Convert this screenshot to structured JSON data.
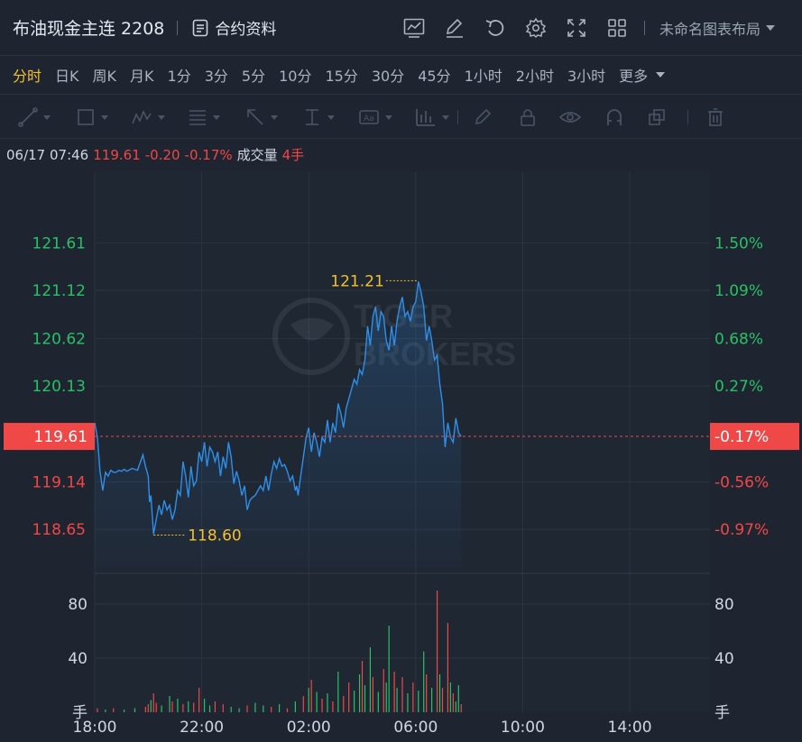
{
  "header": {
    "title": "布油现金主连 2208",
    "contract_label": "合约资料",
    "layout_label": "未命名图表布局",
    "toolbar_icons": [
      "chart-type-icon",
      "edit-icon",
      "refresh-icon",
      "settings-icon",
      "fullscreen-icon",
      "grid-layout-icon"
    ]
  },
  "periods": {
    "items": [
      "分时",
      "日K",
      "周K",
      "月K",
      "1分",
      "3分",
      "5分",
      "10分",
      "15分",
      "30分",
      "45分",
      "1小时",
      "2小时",
      "3小时"
    ],
    "more_label": "更多",
    "active": "分时"
  },
  "drawing_tools": [
    "line-tool-icon",
    "rectangle-tool-icon",
    "wave-tool-icon",
    "fibonacci-tool-icon",
    "arrow-tool-icon",
    "measure-tool-icon",
    "text-tool-icon",
    "indicator-tool-icon",
    "brush-icon",
    "lock-icon",
    "eye-icon",
    "magnet-icon",
    "copy-icon",
    "trash-icon"
  ],
  "quote": {
    "time": "06/17 07:46",
    "price": "119.61",
    "change": "-0.20",
    "change_pct": "-0.17%",
    "volume_label": "成交量",
    "volume": "4手"
  },
  "watermark": {
    "line1": "TIGER",
    "line2": "BROKERS"
  },
  "colors": {
    "up": "#29c165",
    "down": "#f04747",
    "line": "#2f8fe8",
    "accent": "#f4c02f",
    "background": "#1e2531"
  },
  "chart_data": {
    "type": "line",
    "price_axis_left": [
      "121.61",
      "121.12",
      "120.62",
      "120.13",
      "119.61",
      "119.14",
      "118.65"
    ],
    "price_axis_right": [
      "1.50%",
      "1.09%",
      "0.68%",
      "0.27%",
      "-0.17%",
      "-0.56%",
      "-0.97%"
    ],
    "current_price": "119.61",
    "current_pct": "-0.17%",
    "high": {
      "label": "121.21",
      "value": 121.21
    },
    "low": {
      "label": "118.60",
      "value": 118.6
    },
    "ylim": [
      118.25,
      122.35
    ],
    "x_ticks": [
      "18:00",
      "22:00",
      "02:00",
      "06:00",
      "10:00",
      "14:00"
    ],
    "x_hours": [
      0,
      4,
      8,
      12,
      16,
      20
    ],
    "xlim_hours": [
      0,
      23
    ],
    "series": [
      {
        "x": [
          0,
          0.1,
          0.2,
          0.3,
          0.4,
          0.5,
          0.6,
          0.7,
          0.8,
          0.9,
          1.0,
          1.1,
          1.2,
          1.4,
          1.6,
          1.8,
          1.9,
          2.0,
          2.05,
          2.1,
          2.2,
          2.3,
          2.4,
          2.5,
          2.6,
          2.7,
          2.8,
          2.9,
          3.0,
          3.1,
          3.2,
          3.3,
          3.4,
          3.5,
          3.6,
          3.7,
          3.8,
          3.9,
          4.0,
          4.1,
          4.2,
          4.3,
          4.4,
          4.5,
          4.6,
          4.7,
          4.8,
          4.9,
          5.0,
          5.1,
          5.2,
          5.3,
          5.4,
          5.5,
          5.6,
          5.7,
          5.8,
          5.9,
          6.0,
          6.1,
          6.2,
          6.3,
          6.4,
          6.5,
          6.6,
          6.7,
          6.8,
          6.9,
          7.0,
          7.1,
          7.2,
          7.3,
          7.4,
          7.5,
          7.55,
          7.6,
          7.7,
          7.8,
          7.9,
          8.0,
          8.1,
          8.2,
          8.3,
          8.4,
          8.5,
          8.6,
          8.7,
          8.8,
          8.9,
          9.0,
          9.1,
          9.2,
          9.3,
          9.4,
          9.5,
          9.6,
          9.7,
          9.8,
          9.9,
          10.0,
          10.1,
          10.2,
          10.3,
          10.4,
          10.5,
          10.6,
          10.7,
          10.8,
          10.9,
          11.0,
          11.1,
          11.2,
          11.3,
          11.4,
          11.5,
          11.6,
          11.7,
          11.8,
          11.9,
          12.0,
          12.1,
          12.2,
          12.3,
          12.4,
          12.5,
          12.6,
          12.7,
          12.8,
          12.9,
          13.0,
          13.1,
          13.2,
          13.3,
          13.4,
          13.5,
          13.6,
          13.7
        ],
        "values": [
          119.75,
          119.6,
          119.25,
          119.05,
          119.24,
          119.2,
          119.26,
          119.24,
          119.24,
          119.26,
          119.25,
          119.27,
          119.25,
          119.28,
          119.26,
          119.42,
          119.3,
          119.2,
          118.93,
          119.0,
          118.6,
          118.75,
          118.9,
          118.8,
          118.95,
          118.85,
          118.9,
          118.75,
          118.85,
          119.05,
          119.0,
          119.35,
          119.2,
          118.98,
          119.3,
          119.1,
          119.15,
          119.45,
          119.35,
          119.55,
          119.3,
          119.5,
          119.45,
          119.35,
          119.45,
          119.2,
          119.4,
          119.28,
          119.55,
          119.4,
          119.12,
          119.25,
          119.15,
          119.0,
          119.1,
          118.85,
          118.95,
          118.98,
          119.0,
          119.05,
          119.1,
          119.05,
          119.2,
          119.05,
          119.22,
          119.35,
          119.28,
          119.38,
          119.3,
          119.32,
          119.25,
          119.15,
          119.2,
          119.05,
          119.1,
          119.0,
          119.2,
          119.4,
          119.6,
          119.7,
          119.45,
          119.65,
          119.55,
          119.4,
          119.6,
          119.55,
          119.78,
          119.55,
          119.75,
          119.65,
          119.95,
          119.85,
          119.7,
          119.9,
          120.0,
          120.1,
          120.2,
          120.15,
          120.3,
          120.25,
          120.4,
          120.75,
          120.55,
          120.85,
          120.95,
          120.7,
          120.9,
          120.85,
          120.6,
          120.5,
          120.75,
          120.55,
          120.8,
          120.95,
          121.05,
          120.85,
          120.9,
          120.8,
          120.95,
          121.0,
          121.21,
          121.1,
          120.95,
          120.6,
          120.75,
          120.6,
          120.4,
          120.45,
          120.15,
          119.95,
          119.5,
          119.75,
          119.6,
          119.55,
          119.8,
          119.65,
          119.61
        ]
      }
    ],
    "volume_axis_left": [
      "80",
      "40",
      "手"
    ],
    "volume_axis_right": [
      "80",
      "40",
      "手"
    ],
    "volume_ylim": [
      0,
      100
    ],
    "volume": [
      {
        "x": 0.1,
        "v": 3,
        "c": "down"
      },
      {
        "x": 0.4,
        "v": 2,
        "c": "up"
      },
      {
        "x": 0.7,
        "v": 3,
        "c": "down"
      },
      {
        "x": 1.1,
        "v": 2,
        "c": "up"
      },
      {
        "x": 1.5,
        "v": 3,
        "c": "up"
      },
      {
        "x": 1.9,
        "v": 4,
        "c": "down"
      },
      {
        "x": 2.0,
        "v": 6,
        "c": "down"
      },
      {
        "x": 2.1,
        "v": 9,
        "c": "up"
      },
      {
        "x": 2.2,
        "v": 14,
        "c": "down"
      },
      {
        "x": 2.3,
        "v": 7,
        "c": "down"
      },
      {
        "x": 2.5,
        "v": 5,
        "c": "up"
      },
      {
        "x": 2.8,
        "v": 12,
        "c": "up"
      },
      {
        "x": 2.9,
        "v": 8,
        "c": "down"
      },
      {
        "x": 3.1,
        "v": 10,
        "c": "up"
      },
      {
        "x": 3.3,
        "v": 6,
        "c": "down"
      },
      {
        "x": 3.5,
        "v": 8,
        "c": "up"
      },
      {
        "x": 3.7,
        "v": 7,
        "c": "down"
      },
      {
        "x": 3.9,
        "v": 18,
        "c": "down"
      },
      {
        "x": 4.1,
        "v": 10,
        "c": "up"
      },
      {
        "x": 4.3,
        "v": 5,
        "c": "up"
      },
      {
        "x": 4.5,
        "v": 8,
        "c": "down"
      },
      {
        "x": 4.8,
        "v": 6,
        "c": "down"
      },
      {
        "x": 5.1,
        "v": 4,
        "c": "up"
      },
      {
        "x": 5.4,
        "v": 3,
        "c": "up"
      },
      {
        "x": 5.7,
        "v": 5,
        "c": "down"
      },
      {
        "x": 6.0,
        "v": 7,
        "c": "up"
      },
      {
        "x": 6.3,
        "v": 5,
        "c": "up"
      },
      {
        "x": 6.6,
        "v": 4,
        "c": "down"
      },
      {
        "x": 6.9,
        "v": 6,
        "c": "up"
      },
      {
        "x": 7.2,
        "v": 3,
        "c": "down"
      },
      {
        "x": 7.5,
        "v": 8,
        "c": "up"
      },
      {
        "x": 7.8,
        "v": 12,
        "c": "down"
      },
      {
        "x": 8.0,
        "v": 18,
        "c": "up"
      },
      {
        "x": 8.1,
        "v": 24,
        "c": "down"
      },
      {
        "x": 8.3,
        "v": 15,
        "c": "up"
      },
      {
        "x": 8.5,
        "v": 10,
        "c": "down"
      },
      {
        "x": 8.7,
        "v": 14,
        "c": "up"
      },
      {
        "x": 8.9,
        "v": 8,
        "c": "down"
      },
      {
        "x": 9.1,
        "v": 30,
        "c": "up"
      },
      {
        "x": 9.3,
        "v": 12,
        "c": "down"
      },
      {
        "x": 9.5,
        "v": 22,
        "c": "down"
      },
      {
        "x": 9.7,
        "v": 16,
        "c": "up"
      },
      {
        "x": 9.9,
        "v": 28,
        "c": "up"
      },
      {
        "x": 10.0,
        "v": 38,
        "c": "down"
      },
      {
        "x": 10.1,
        "v": 20,
        "c": "up"
      },
      {
        "x": 10.3,
        "v": 48,
        "c": "up"
      },
      {
        "x": 10.4,
        "v": 26,
        "c": "down"
      },
      {
        "x": 10.6,
        "v": 15,
        "c": "up"
      },
      {
        "x": 10.8,
        "v": 32,
        "c": "down"
      },
      {
        "x": 10.9,
        "v": 22,
        "c": "up"
      },
      {
        "x": 11.0,
        "v": 64,
        "c": "up"
      },
      {
        "x": 11.2,
        "v": 30,
        "c": "down"
      },
      {
        "x": 11.3,
        "v": 18,
        "c": "up"
      },
      {
        "x": 11.5,
        "v": 26,
        "c": "down"
      },
      {
        "x": 11.7,
        "v": 14,
        "c": "up"
      },
      {
        "x": 11.9,
        "v": 22,
        "c": "down"
      },
      {
        "x": 12.1,
        "v": 16,
        "c": "up"
      },
      {
        "x": 12.3,
        "v": 45,
        "c": "up"
      },
      {
        "x": 12.4,
        "v": 28,
        "c": "down"
      },
      {
        "x": 12.6,
        "v": 18,
        "c": "up"
      },
      {
        "x": 12.8,
        "v": 90,
        "c": "down"
      },
      {
        "x": 12.9,
        "v": 28,
        "c": "up"
      },
      {
        "x": 13.0,
        "v": 18,
        "c": "down"
      },
      {
        "x": 13.2,
        "v": 66,
        "c": "down"
      },
      {
        "x": 13.3,
        "v": 22,
        "c": "up"
      },
      {
        "x": 13.4,
        "v": 14,
        "c": "down"
      },
      {
        "x": 13.5,
        "v": 8,
        "c": "up"
      },
      {
        "x": 13.6,
        "v": 20,
        "c": "up"
      },
      {
        "x": 13.7,
        "v": 6,
        "c": "down"
      }
    ]
  }
}
